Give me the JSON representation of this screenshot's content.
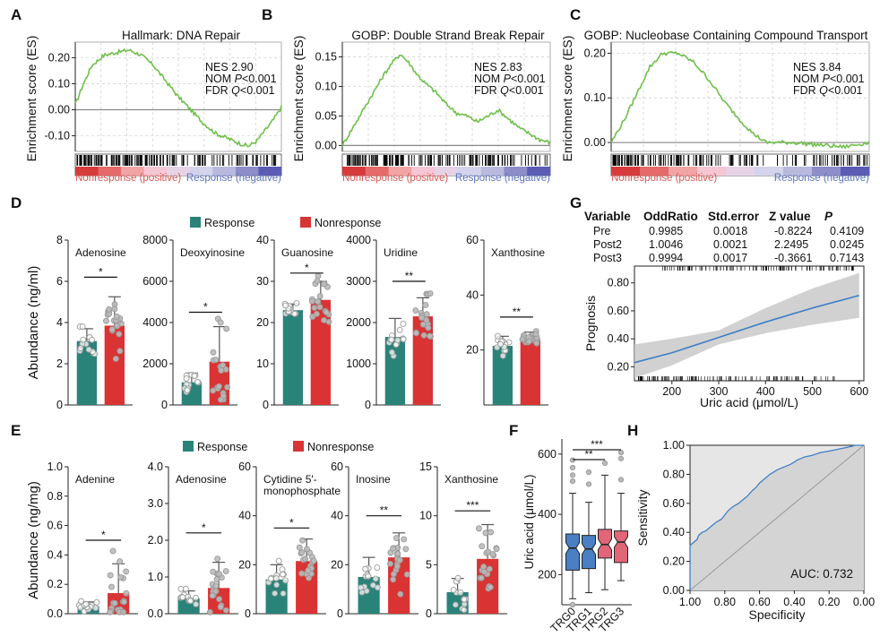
{
  "colors": {
    "response": "#2a8379",
    "nonresponse": "#d93433",
    "gsea_line": "#6fbf4a",
    "trg_blue": "#4a7fc3",
    "trg_red": "#e06678",
    "curve_blue": "#3f7fc6",
    "ci_gray": "#cccccc"
  },
  "chart_data": [
    {
      "panel": "A",
      "type": "gsea",
      "title": "Hallmark: DNA Repair",
      "ylabel": "Enrichment score (ES)",
      "ylim": [
        -0.16,
        0.26
      ],
      "yticks": [
        0.2,
        0.1,
        0.0,
        -0.1
      ],
      "ytick_labels": [
        "0.20",
        "0.10",
        "0.00",
        "-0.10"
      ],
      "stats": [
        {
          "k": "NES",
          "v": "2.90"
        },
        {
          "k": "NOM",
          "pi": "P",
          "v": "<0.001"
        },
        {
          "k": "FDR",
          "pi": "Q",
          "v": "<0.001"
        }
      ],
      "curve": [
        [
          0,
          0.02
        ],
        [
          0.04,
          0.1
        ],
        [
          0.08,
          0.17
        ],
        [
          0.14,
          0.21
        ],
        [
          0.2,
          0.22
        ],
        [
          0.26,
          0.23
        ],
        [
          0.32,
          0.21
        ],
        [
          0.38,
          0.17
        ],
        [
          0.44,
          0.11
        ],
        [
          0.5,
          0.05
        ],
        [
          0.56,
          0.0
        ],
        [
          0.62,
          -0.05
        ],
        [
          0.68,
          -0.09
        ],
        [
          0.74,
          -0.11
        ],
        [
          0.8,
          -0.13
        ],
        [
          0.84,
          -0.14
        ],
        [
          0.88,
          -0.12
        ],
        [
          0.92,
          -0.08
        ],
        [
          0.96,
          -0.04
        ],
        [
          1,
          0.01
        ]
      ],
      "bar_labels": {
        "left": "Nonresponse (positive)",
        "right": "Response (negative)"
      }
    },
    {
      "panel": "B",
      "type": "gsea",
      "title": "GOBP: Double Strand Break Repair",
      "ylabel": "Enrichment score (ES)",
      "ylim": [
        -0.01,
        0.175
      ],
      "yticks": [
        0.15,
        0.1,
        0.05,
        0.0
      ],
      "ytick_labels": [
        "0.15",
        "0.10",
        "0.05",
        "0.00"
      ],
      "stats": [
        {
          "k": "NES",
          "v": "2.83"
        },
        {
          "k": "NOM",
          "pi": "P",
          "v": "<0.001"
        },
        {
          "k": "FDR",
          "pi": "Q",
          "v": "<0.001"
        }
      ],
      "curve": [
        [
          0,
          0.0
        ],
        [
          0.05,
          0.03
        ],
        [
          0.1,
          0.06
        ],
        [
          0.15,
          0.09
        ],
        [
          0.2,
          0.12
        ],
        [
          0.24,
          0.14
        ],
        [
          0.28,
          0.155
        ],
        [
          0.32,
          0.14
        ],
        [
          0.36,
          0.12
        ],
        [
          0.4,
          0.105
        ],
        [
          0.45,
          0.09
        ],
        [
          0.5,
          0.07
        ],
        [
          0.55,
          0.055
        ],
        [
          0.6,
          0.05
        ],
        [
          0.65,
          0.04
        ],
        [
          0.7,
          0.05
        ],
        [
          0.75,
          0.06
        ],
        [
          0.8,
          0.045
        ],
        [
          0.85,
          0.03
        ],
        [
          0.9,
          0.02
        ],
        [
          0.95,
          0.01
        ],
        [
          1,
          0.005
        ]
      ],
      "bar_labels": {
        "left": "Nonresponse (positive)",
        "right": "Response (negative)"
      }
    },
    {
      "panel": "C",
      "type": "gsea",
      "title": "GOBP: Nucleobase Containing Compound Transport",
      "ylabel": "Enrichment score (ES)",
      "ylim": [
        -0.02,
        0.225
      ],
      "yticks": [
        0.2,
        0.1,
        0.0
      ],
      "ytick_labels": [
        "0.20",
        "0.10",
        "0.00"
      ],
      "stats": [
        {
          "k": "NES",
          "v": "3.84"
        },
        {
          "k": "NOM",
          "pi": "P",
          "v": "<0.001"
        },
        {
          "k": "FDR",
          "pi": "Q",
          "v": "<0.001"
        }
      ],
      "curve": [
        [
          0,
          0.0
        ],
        [
          0.05,
          0.05
        ],
        [
          0.1,
          0.11
        ],
        [
          0.15,
          0.17
        ],
        [
          0.2,
          0.2
        ],
        [
          0.26,
          0.2
        ],
        [
          0.32,
          0.18
        ],
        [
          0.38,
          0.14
        ],
        [
          0.44,
          0.09
        ],
        [
          0.5,
          0.05
        ],
        [
          0.55,
          0.02
        ],
        [
          0.6,
          0.0
        ],
        [
          0.7,
          0.0
        ],
        [
          0.8,
          -0.005
        ],
        [
          0.9,
          -0.01
        ],
        [
          1,
          0.0
        ]
      ],
      "bar_labels": {
        "left": "Nonresponse (positive)",
        "right": "Response (negative)"
      }
    },
    {
      "panel": "D",
      "type": "bar",
      "ylabel": "Abundance (ng/ml)",
      "legend": {
        "response": "Response",
        "nonresponse": "Nonresponse"
      },
      "subplots": [
        {
          "title": "Adenosine",
          "ylim": [
            0,
            8
          ],
          "yticks": [
            0,
            2,
            4,
            6,
            8
          ],
          "values": [
            3.1,
            3.85
          ],
          "errors": [
            0.6,
            1.4
          ],
          "sig": "*",
          "sig_y": 6.2
        },
        {
          "title": "Deoxyinosine",
          "ylim": [
            0,
            8000
          ],
          "yticks": [
            0,
            2000,
            4000,
            6000,
            8000
          ],
          "values": [
            1100,
            2100
          ],
          "errors": [
            450,
            1700
          ],
          "sig": "*",
          "sig_y": 4500
        },
        {
          "title": "Guanosine",
          "ylim": [
            0,
            40
          ],
          "yticks": [
            0,
            10,
            20,
            30,
            40
          ],
          "values": [
            23,
            25.5
          ],
          "errors": [
            1.5,
            4.5
          ],
          "sig": "*",
          "sig_y": 32
        },
        {
          "title": "Uridine",
          "ylim": [
            0,
            4000
          ],
          "yticks": [
            0,
            1000,
            2000,
            3000,
            4000
          ],
          "values": [
            1650,
            2150
          ],
          "errors": [
            450,
            450
          ],
          "sig": "**",
          "sig_y": 3000
        },
        {
          "title": "Xanthosine",
          "ylim": [
            0,
            60
          ],
          "yticks": [
            20,
            40,
            60
          ],
          "values": [
            21.5,
            24
          ],
          "errors": [
            3.5,
            2.5
          ],
          "sig": "**",
          "sig_y": 32
        }
      ]
    },
    {
      "panel": "E",
      "type": "bar",
      "ylabel": "Abundance (ng/mg)",
      "legend": {
        "response": "Response",
        "nonresponse": "Nonresponse"
      },
      "subplots": [
        {
          "title": "Adenine",
          "ylim": [
            0,
            1.0
          ],
          "yticks": [
            0.0,
            0.2,
            0.4,
            0.6,
            0.8,
            1.0
          ],
          "ytick_labels": [
            "0.0",
            "0.2",
            "0.4",
            "0.6",
            "0.8",
            "1.0"
          ],
          "values": [
            0.05,
            0.14
          ],
          "errors": [
            0.03,
            0.2
          ],
          "sig": "*",
          "sig_y": 0.5
        },
        {
          "title": "Adenosine",
          "ylim": [
            0,
            4.0
          ],
          "yticks": [
            0.0,
            1.0,
            2.0,
            3.0,
            4.0
          ],
          "ytick_labels": [
            "0.0",
            "1.0",
            "2.0",
            "3.0",
            "4.0"
          ],
          "values": [
            0.42,
            0.7
          ],
          "errors": [
            0.2,
            0.7
          ],
          "sig": "*",
          "sig_y": 2.2
        },
        {
          "title": "Cytidine 5'-",
          "title2": "monophosphate",
          "ylim": [
            0,
            60
          ],
          "yticks": [
            0,
            20,
            40,
            60
          ],
          "values": [
            14,
            21.5
          ],
          "errors": [
            6,
            9
          ],
          "sig": "*",
          "sig_y": 35
        },
        {
          "title": "Inosine",
          "ylim": [
            0,
            60
          ],
          "yticks": [
            0,
            20,
            40,
            60
          ],
          "values": [
            15,
            23
          ],
          "errors": [
            8,
            10
          ],
          "sig": "**",
          "sig_y": 40
        },
        {
          "title": "Xanthosine",
          "ylim": [
            0,
            15
          ],
          "yticks": [
            0,
            5,
            10,
            15
          ],
          "values": [
            2.2,
            5.6
          ],
          "errors": [
            1.4,
            3.5
          ],
          "sig": "***",
          "sig_y": 10.5
        }
      ]
    },
    {
      "panel": "F",
      "type": "boxplot",
      "ylabel": "Uric acid (μmol/L)",
      "ylim": [
        100,
        650
      ],
      "yticks": [
        200,
        400,
        600
      ],
      "categories": [
        "TRG0",
        "TRG1",
        "TRG2",
        "TRG3"
      ],
      "boxes": [
        {
          "q1": 215,
          "median": 288,
          "q3": 335,
          "whislo": 120,
          "whishi": 470
        },
        {
          "q1": 220,
          "median": 285,
          "q3": 330,
          "whislo": 140,
          "whishi": 440
        },
        {
          "q1": 255,
          "median": 300,
          "q3": 350,
          "whislo": 150,
          "whishi": 530
        },
        {
          "q1": 240,
          "median": 308,
          "q3": 345,
          "whislo": 180,
          "whishi": 470
        }
      ],
      "outliers": [
        [
          0,
          580
        ],
        [
          0,
          555
        ],
        [
          0,
          530
        ],
        [
          0,
          510
        ],
        [
          0,
          100
        ],
        [
          1,
          540
        ],
        [
          1,
          500
        ],
        [
          2,
          570
        ],
        [
          3,
          585
        ],
        [
          3,
          605
        ],
        [
          3,
          515
        ]
      ],
      "sig": [
        {
          "a": 0,
          "b": 2,
          "label": "**"
        },
        {
          "a": 0,
          "b": 3,
          "label": "***"
        }
      ]
    },
    {
      "panel": "G",
      "type": "line",
      "xlabel": "Uric acid (μmol/L)",
      "ylabel": "Prognosis",
      "xlim": [
        120,
        610
      ],
      "ylim": [
        0.1,
        0.92
      ],
      "xticks": [
        200,
        300,
        400,
        500,
        600
      ],
      "yticks": [
        0.2,
        0.4,
        0.6,
        0.8
      ],
      "ytick_labels": [
        "0.20",
        "0.40",
        "0.60",
        "0.80"
      ],
      "table": {
        "headers": [
          "Variable",
          "OddRatio",
          "Std.error",
          "Z value",
          "P"
        ],
        "rows": [
          [
            "Pre",
            "0.9985",
            "0.0018",
            "-0.8224",
            "0.4109"
          ],
          [
            "Post2",
            "1.0046",
            "0.0021",
            "2.2495",
            "0.0245"
          ],
          [
            "Post3",
            "0.9994",
            "0.0017",
            "-0.3661",
            "0.7143"
          ]
        ]
      },
      "x": [
        120,
        200,
        300,
        400,
        500,
        600
      ],
      "y": [
        0.23,
        0.3,
        0.41,
        0.52,
        0.62,
        0.71
      ],
      "ci_low": [
        0.12,
        0.21,
        0.36,
        0.44,
        0.5,
        0.55
      ],
      "ci_high": [
        0.36,
        0.4,
        0.46,
        0.62,
        0.76,
        0.87
      ]
    },
    {
      "panel": "H",
      "type": "roc",
      "xlabel": "Specificity",
      "ylabel": "Sensitivity",
      "xticks": [
        1.0,
        0.8,
        0.6,
        0.4,
        0.2,
        0.0
      ],
      "xtick_labels": [
        "1.00",
        "0.80",
        "0.60",
        "0.40",
        "0.20",
        "0.00"
      ],
      "yticks": [
        0.0,
        0.2,
        0.4,
        0.6,
        0.8,
        1.0
      ],
      "ytick_labels": [
        "0.00",
        "0.20",
        "0.40",
        "0.60",
        "0.80",
        "1.00"
      ],
      "auc_label": "AUC: 0.732",
      "fpr": [
        0,
        0,
        0.02,
        0.04,
        0.05,
        0.07,
        0.09,
        0.11,
        0.13,
        0.15,
        0.18,
        0.2,
        0.22,
        0.25,
        0.28,
        0.3,
        0.33,
        0.36,
        0.38,
        0.4,
        0.43,
        0.46,
        0.5,
        0.54,
        0.58,
        0.62,
        0.66,
        0.7,
        0.75,
        0.8,
        0.84,
        0.88,
        0.92,
        0.95,
        1
      ],
      "tpr": [
        0,
        0.31,
        0.33,
        0.35,
        0.38,
        0.4,
        0.41,
        0.43,
        0.45,
        0.47,
        0.49,
        0.52,
        0.55,
        0.58,
        0.6,
        0.62,
        0.65,
        0.69,
        0.71,
        0.74,
        0.77,
        0.8,
        0.83,
        0.85,
        0.87,
        0.9,
        0.92,
        0.93,
        0.95,
        0.96,
        0.97,
        0.98,
        0.99,
        1.0,
        1.0
      ]
    }
  ]
}
